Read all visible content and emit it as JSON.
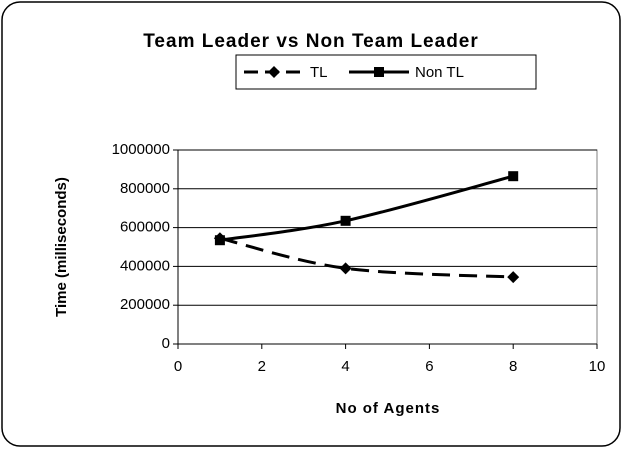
{
  "chart_data": {
    "type": "line",
    "title": "Team Leader vs Non Team Leader",
    "x_label": "No of Agents",
    "y_label": "Time (milliseconds)",
    "series": [
      {
        "name": "TL",
        "color": "#000000",
        "dash": true,
        "marker": "diamond",
        "x": [
          1,
          4,
          8
        ],
        "values": [
          545000,
          390000,
          345000
        ]
      },
      {
        "name": "Non TL",
        "color": "#000000",
        "dash": false,
        "marker": "square",
        "x": [
          1,
          4,
          8
        ],
        "values": [
          535000,
          635000,
          865000
        ]
      }
    ],
    "xlim": [
      0,
      10
    ],
    "xticks": [
      0,
      2,
      4,
      6,
      8,
      10
    ],
    "ylim": [
      0,
      1000000
    ],
    "yticks": [
      0,
      200000,
      400000,
      600000,
      800000,
      1000000
    ],
    "grid": true,
    "smooth": true,
    "legend": "top"
  }
}
